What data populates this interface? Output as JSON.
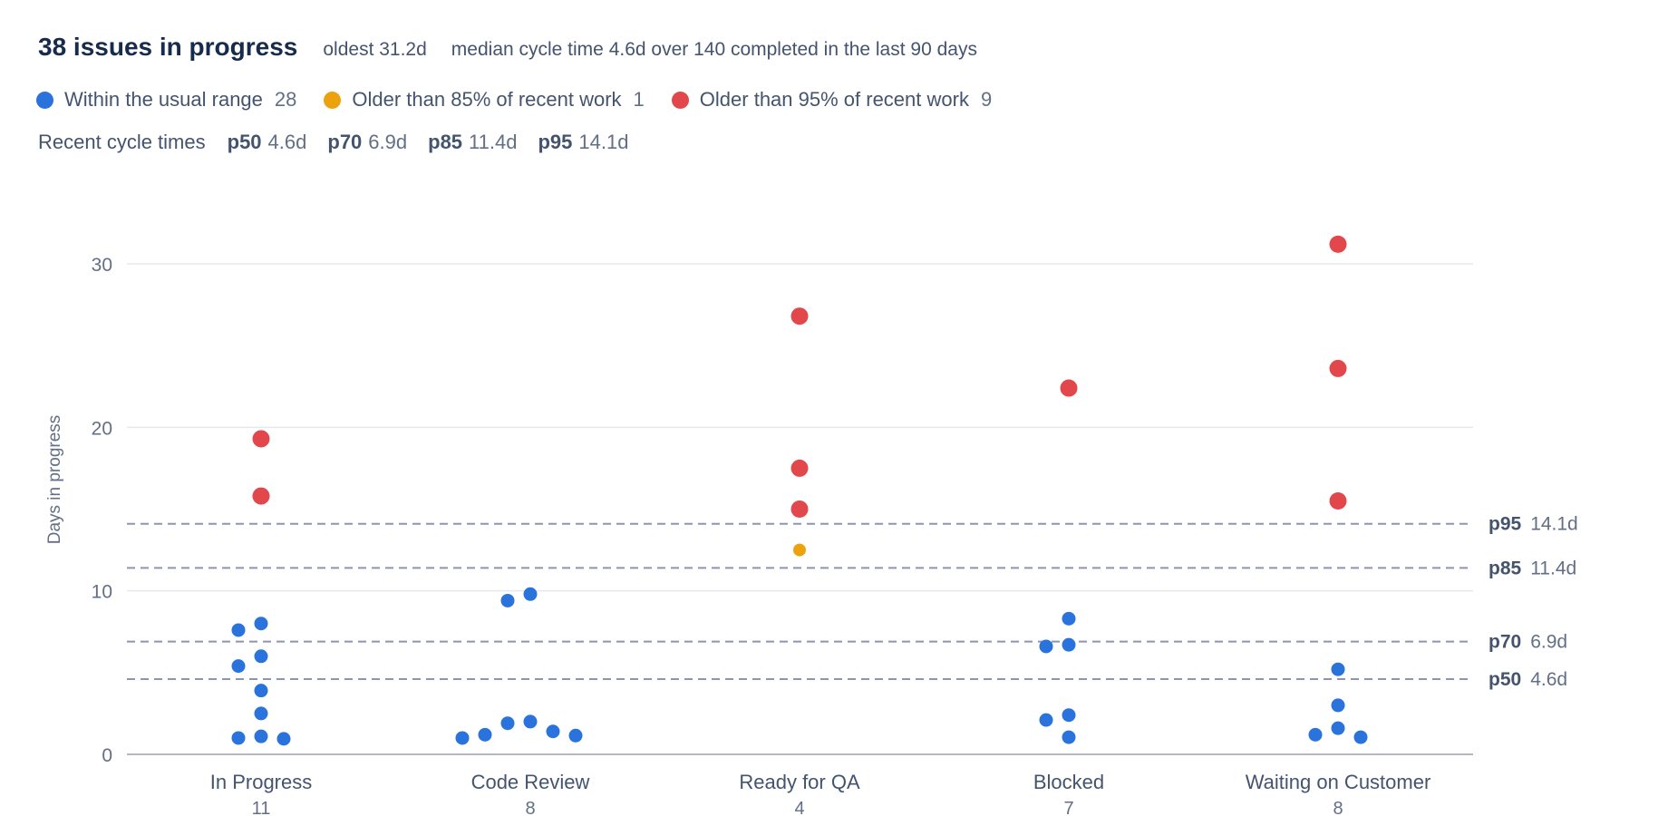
{
  "header": {
    "title": "38 issues in progress",
    "oldest": "oldest 31.2d",
    "median": "median cycle time 4.6d over 140 completed in the last 90 days"
  },
  "legend": [
    {
      "label": "Within the usual range",
      "count": "28",
      "color": "#2a73dc"
    },
    {
      "label": "Older than 85% of recent work",
      "count": "1",
      "color": "#eba20c"
    },
    {
      "label": "Older than 95% of recent work",
      "count": "9",
      "color": "#e2484b"
    }
  ],
  "percentile_row": {
    "title": "Recent cycle times",
    "items": [
      {
        "key": "p50",
        "value": "4.6d"
      },
      {
        "key": "p70",
        "value": "6.9d"
      },
      {
        "key": "p85",
        "value": "11.4d"
      },
      {
        "key": "p95",
        "value": "14.1d"
      }
    ]
  },
  "chart_data": {
    "type": "scatter",
    "ylabel": "Days in progress",
    "ylim": [
      0,
      33
    ],
    "yticks": [
      0,
      10,
      20,
      30
    ],
    "grid": true,
    "categories": [
      "In Progress",
      "Code Review",
      "Ready for QA",
      "Blocked",
      "Waiting on Customer"
    ],
    "category_counts": [
      "11",
      "8",
      "4",
      "7",
      "8"
    ],
    "colors": {
      "normal": "#2a73dc",
      "warning": "#eba20c",
      "critical": "#e2484b"
    },
    "reference_lines": [
      {
        "key": "p95",
        "label": "14.1d",
        "value": 14.1
      },
      {
        "key": "p85",
        "label": "11.4d",
        "value": 11.4
      },
      {
        "key": "p70",
        "label": "6.9d",
        "value": 6.9
      },
      {
        "key": "p50",
        "label": "4.6d",
        "value": 4.6
      }
    ],
    "points": [
      {
        "category": 0,
        "offset": 0,
        "value": 19.3,
        "status": "critical"
      },
      {
        "category": 0,
        "offset": 0,
        "value": 15.8,
        "status": "critical"
      },
      {
        "category": 0,
        "offset": -1,
        "value": 7.6,
        "status": "normal"
      },
      {
        "category": 0,
        "offset": 0,
        "value": 8.0,
        "status": "normal"
      },
      {
        "category": 0,
        "offset": -1,
        "value": 5.4,
        "status": "normal"
      },
      {
        "category": 0,
        "offset": 0,
        "value": 6.0,
        "status": "normal"
      },
      {
        "category": 0,
        "offset": 0,
        "value": 3.9,
        "status": "normal"
      },
      {
        "category": 0,
        "offset": 0,
        "value": 2.5,
        "status": "normal"
      },
      {
        "category": 0,
        "offset": -1,
        "value": 1.0,
        "status": "normal"
      },
      {
        "category": 0,
        "offset": 0,
        "value": 1.1,
        "status": "normal"
      },
      {
        "category": 0,
        "offset": 1,
        "value": 0.95,
        "status": "normal"
      },
      {
        "category": 1,
        "offset": -1,
        "value": 9.4,
        "status": "normal"
      },
      {
        "category": 1,
        "offset": 0,
        "value": 9.8,
        "status": "normal"
      },
      {
        "category": 1,
        "offset": -3,
        "value": 1.0,
        "status": "normal"
      },
      {
        "category": 1,
        "offset": -2,
        "value": 1.2,
        "status": "normal"
      },
      {
        "category": 1,
        "offset": -1,
        "value": 1.9,
        "status": "normal"
      },
      {
        "category": 1,
        "offset": 0,
        "value": 2.0,
        "status": "normal"
      },
      {
        "category": 1,
        "offset": 1,
        "value": 1.4,
        "status": "normal"
      },
      {
        "category": 1,
        "offset": 2,
        "value": 1.15,
        "status": "normal"
      },
      {
        "category": 2,
        "offset": 0,
        "value": 26.8,
        "status": "critical"
      },
      {
        "category": 2,
        "offset": 0,
        "value": 17.5,
        "status": "critical"
      },
      {
        "category": 2,
        "offset": 0,
        "value": 15.0,
        "status": "critical"
      },
      {
        "category": 2,
        "offset": 0,
        "value": 12.5,
        "status": "warning"
      },
      {
        "category": 3,
        "offset": 0,
        "value": 22.4,
        "status": "critical"
      },
      {
        "category": 3,
        "offset": 0,
        "value": 8.3,
        "status": "normal"
      },
      {
        "category": 3,
        "offset": -1,
        "value": 6.6,
        "status": "normal"
      },
      {
        "category": 3,
        "offset": 0,
        "value": 6.7,
        "status": "normal"
      },
      {
        "category": 3,
        "offset": -1,
        "value": 2.1,
        "status": "normal"
      },
      {
        "category": 3,
        "offset": 0,
        "value": 2.4,
        "status": "normal"
      },
      {
        "category": 3,
        "offset": 0,
        "value": 1.05,
        "status": "normal"
      },
      {
        "category": 4,
        "offset": 0,
        "value": 31.2,
        "status": "critical"
      },
      {
        "category": 4,
        "offset": 0,
        "value": 23.6,
        "status": "critical"
      },
      {
        "category": 4,
        "offset": 0,
        "value": 15.5,
        "status": "critical"
      },
      {
        "category": 4,
        "offset": 0,
        "value": 5.2,
        "status": "normal"
      },
      {
        "category": 4,
        "offset": 0,
        "value": 3.0,
        "status": "normal"
      },
      {
        "category": 4,
        "offset": -1,
        "value": 1.2,
        "status": "normal"
      },
      {
        "category": 4,
        "offset": 0,
        "value": 1.6,
        "status": "normal"
      },
      {
        "category": 4,
        "offset": 1,
        "value": 1.05,
        "status": "normal"
      }
    ]
  }
}
